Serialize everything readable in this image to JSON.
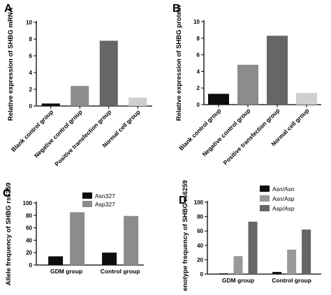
{
  "chart_data": [
    {
      "panel": "A",
      "type": "bar",
      "ylabel": "Relative expression of SHBG mRNA",
      "ylim": [
        0,
        10
      ],
      "yticks": [
        0,
        2,
        4,
        6,
        8,
        10
      ],
      "categories": [
        "Blank control group",
        "Negative control group",
        "Positive transfection group",
        "Normal cell group"
      ],
      "values": [
        0.3,
        2.4,
        7.8,
        1.0
      ],
      "colors": [
        "#0d0d0d",
        "#8c8c8c",
        "#666666",
        "#cfcfcf"
      ],
      "grid": false
    },
    {
      "panel": "B",
      "type": "bar",
      "ylabel": "Relative expression of SHBG protein",
      "ylim": [
        0,
        10
      ],
      "yticks": [
        0,
        2,
        4,
        6,
        8,
        10
      ],
      "categories": [
        "Blank control group",
        "Negative control group",
        "Positive transfection group",
        "Normal cell group"
      ],
      "values": [
        1.3,
        4.8,
        8.3,
        1.4
      ],
      "colors": [
        "#0d0d0d",
        "#8c8c8c",
        "#666666",
        "#cfcfcf"
      ],
      "grid": false
    },
    {
      "panel": "C",
      "type": "bar",
      "ylabel": "Allele frequency of SHBG rs6259",
      "ylim": [
        0,
        100
      ],
      "yticks": [
        0,
        20,
        40,
        60,
        80,
        100
      ],
      "categories": [
        "GDM group",
        "Control group"
      ],
      "series": [
        {
          "name": "Asn327",
          "values": [
            14,
            20
          ],
          "color": "#0d0d0d"
        },
        {
          "name": "Asp327",
          "values": [
            85,
            79
          ],
          "color": "#8c8c8c"
        }
      ],
      "legend": "top",
      "grid": false
    },
    {
      "panel": "D",
      "type": "bar",
      "ylabel": "Genotype frequency of SHBG rs6259",
      "ylim": [
        0,
        100
      ],
      "yticks": [
        0,
        20,
        40,
        60,
        80,
        100
      ],
      "categories": [
        "GDM group",
        "Control group"
      ],
      "series": [
        {
          "name": "Asn/Asn",
          "values": [
            1,
            3
          ],
          "color": "#0d0d0d"
        },
        {
          "name": "Asn/Asp",
          "values": [
            25,
            34
          ],
          "color": "#999999"
        },
        {
          "name": "Asp/Asp",
          "values": [
            73,
            62
          ],
          "color": "#666666"
        }
      ],
      "legend": "top-right",
      "grid": false
    }
  ]
}
